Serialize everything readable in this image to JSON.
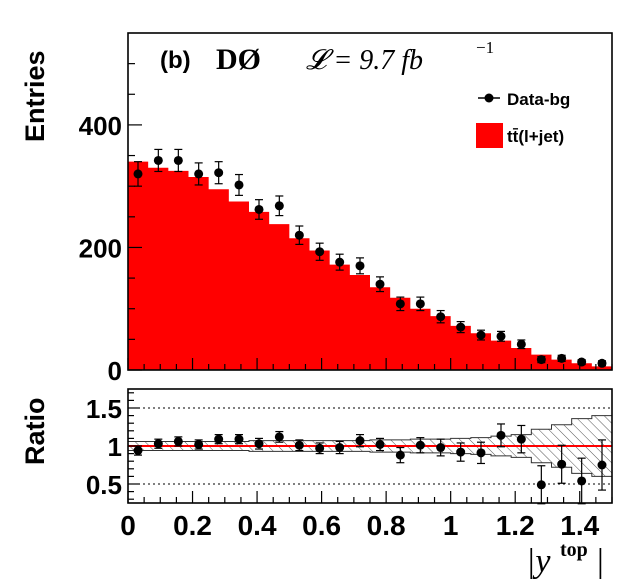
{
  "chart_data": [
    {
      "type": "histogram",
      "panel": "main",
      "panel_label": "(b)",
      "experiment": "DØ",
      "lumi_text": "𝓛 = 9.7 fb",
      "lumi_exp": "−1",
      "ylabel": "Entries",
      "xlim": [
        0,
        1.5
      ],
      "ylim": [
        0,
        550
      ],
      "yticks": [
        0,
        200,
        400
      ],
      "ytick_labels": [
        "0",
        "200",
        "400"
      ],
      "legend": {
        "placement": "top-right",
        "data_label": "Data-bg",
        "mc_label": "tt̄(l+jet)"
      },
      "colors": {
        "mc_fill": "#ff0000",
        "data": "#000000"
      },
      "bin_width": 0.0625,
      "mc_hist": [
        340,
        330,
        325,
        315,
        295,
        275,
        258,
        238,
        215,
        195,
        172,
        155,
        135,
        118,
        100,
        88,
        72,
        60,
        48,
        36,
        25,
        17,
        11,
        6
      ],
      "data_x": [
        0.031,
        0.094,
        0.156,
        0.219,
        0.281,
        0.344,
        0.406,
        0.469,
        0.531,
        0.594,
        0.656,
        0.719,
        0.781,
        0.844,
        0.906,
        0.969,
        1.031,
        1.094,
        1.156,
        1.219,
        1.281,
        1.344,
        1.406,
        1.469
      ],
      "data_y": [
        320,
        342,
        342,
        320,
        322,
        302,
        262,
        268,
        220,
        193,
        176,
        170,
        140,
        108,
        108,
        87,
        70,
        57,
        55,
        42,
        17,
        19,
        13,
        11
      ],
      "data_err": [
        20,
        18,
        18,
        18,
        18,
        17,
        16,
        16,
        15,
        14,
        13,
        13,
        12,
        11,
        11,
        10,
        9,
        8,
        8,
        7,
        5,
        5,
        4,
        4
      ]
    },
    {
      "type": "scatter",
      "panel": "ratio",
      "ylabel": "Ratio",
      "xlabel": "|y",
      "xlabel_sup": "top",
      "xlim": [
        0,
        1.5
      ],
      "ylim": [
        0.25,
        1.75
      ],
      "xticks": [
        0,
        0.2,
        0.4,
        0.6,
        0.8,
        1,
        1.2,
        1.4
      ],
      "xtick_labels": [
        "0",
        "0.2",
        "0.4",
        "0.6",
        "0.8",
        "1",
        "1.2",
        "1.4"
      ],
      "yticks": [
        0.5,
        1,
        1.5
      ],
      "ytick_labels": [
        "0.5",
        "1",
        "1.5"
      ],
      "reference_lines": [
        0.5,
        1,
        1.5
      ],
      "colors": {
        "reference": "#ff0000",
        "band": "#555555"
      },
      "band_halfwidth": [
        0.06,
        0.06,
        0.06,
        0.06,
        0.06,
        0.06,
        0.07,
        0.07,
        0.07,
        0.07,
        0.07,
        0.07,
        0.08,
        0.08,
        0.09,
        0.09,
        0.1,
        0.11,
        0.13,
        0.15,
        0.22,
        0.28,
        0.36,
        0.4
      ],
      "ratio_x": [
        0.031,
        0.094,
        0.156,
        0.219,
        0.281,
        0.344,
        0.406,
        0.469,
        0.531,
        0.594,
        0.656,
        0.719,
        0.781,
        0.844,
        0.906,
        0.969,
        1.031,
        1.094,
        1.156,
        1.219,
        1.281,
        1.344,
        1.406,
        1.469
      ],
      "ratio_y": [
        0.94,
        1.03,
        1.06,
        1.02,
        1.09,
        1.09,
        1.03,
        1.12,
        1.01,
        0.97,
        0.98,
        1.07,
        1.02,
        0.88,
        1.01,
        0.98,
        0.92,
        0.91,
        1.14,
        1.09,
        0.49,
        0.76,
        0.54,
        0.75
      ],
      "ratio_err": [
        0.06,
        0.06,
        0.06,
        0.06,
        0.06,
        0.06,
        0.07,
        0.07,
        0.07,
        0.07,
        0.08,
        0.08,
        0.08,
        0.1,
        0.1,
        0.11,
        0.12,
        0.14,
        0.15,
        0.18,
        0.25,
        0.25,
        0.3,
        0.33
      ]
    }
  ]
}
